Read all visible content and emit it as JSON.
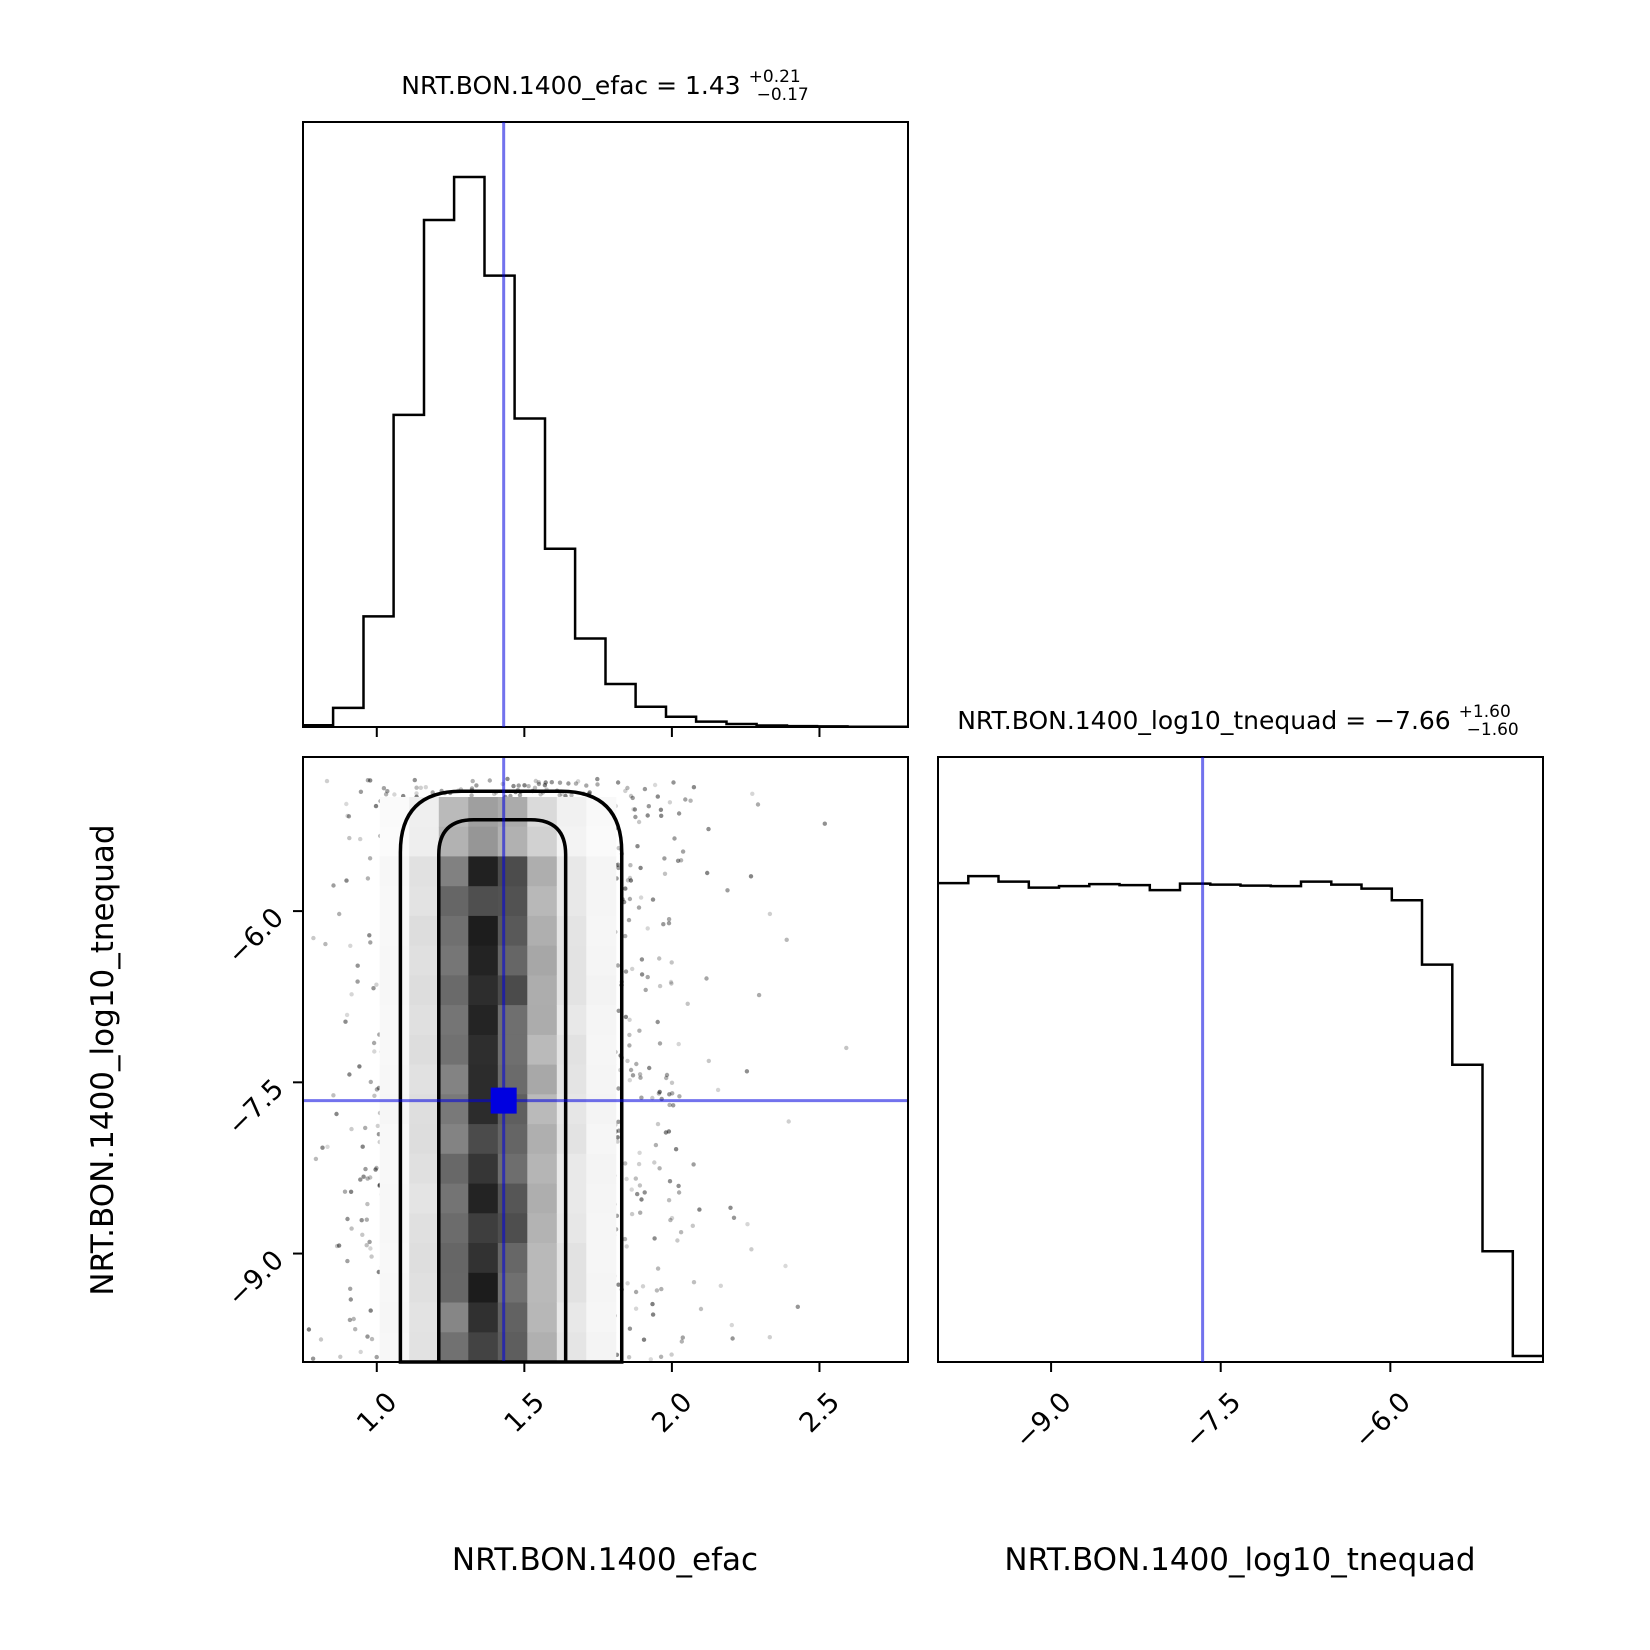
{
  "figure": {
    "truth_color": "#0000e0",
    "line_color": "#000000"
  },
  "chart_data": [
    {
      "id": "hist_efac",
      "type": "histogram",
      "title": {
        "text": "NRT.BON.1400_efac = 1.43",
        "sup": "+0.21",
        "sub": "−0.17"
      },
      "xlim": [
        0.75,
        2.8
      ],
      "x_ticks_shared_with": "joint",
      "bin_edges": [
        0.75,
        0.852,
        0.955,
        1.057,
        1.16,
        1.262,
        1.365,
        1.467,
        1.57,
        1.672,
        1.775,
        1.877,
        1.98,
        2.082,
        2.185,
        2.287,
        2.39,
        2.492,
        2.595,
        2.697,
        2.8
      ],
      "counts": [
        0.3,
        3.2,
        18.5,
        52.2,
        84.8,
        92.0,
        75.5,
        51.6,
        29.8,
        14.8,
        7.2,
        3.4,
        1.7,
        0.9,
        0.5,
        0.25,
        0.15,
        0.1,
        0.05,
        0.03
      ],
      "truth_x": 1.43
    },
    {
      "id": "joint",
      "type": "heatmap",
      "x_values_from": "efac",
      "y_values_from": "log10_tnequad",
      "xlim": [
        0.75,
        2.8
      ],
      "ylim": [
        -9.95,
        -4.65
      ],
      "x_ticks": [
        "1.0",
        "1.5",
        "2.0",
        "2.5"
      ],
      "x_tick_values": [
        1.0,
        1.5,
        2.0,
        2.5
      ],
      "y_ticks": [
        "−6.0",
        "−7.5",
        "−9.0"
      ],
      "y_tick_values": [
        -6.0,
        -7.5,
        -9.0
      ],
      "xlabel": "NRT.BON.1400_efac",
      "ylabel": "NRT.BON.1400_log10_tnequad",
      "density_x_centers": [
        1.06,
        1.16,
        1.26,
        1.36,
        1.46,
        1.56,
        1.66,
        1.76
      ],
      "density_x_column_levels": [
        0.03,
        0.12,
        0.55,
        0.8,
        0.62,
        0.3,
        0.1,
        0.04
      ],
      "contours": [
        {
          "level": "outer",
          "left_x": 1.08,
          "right_x": 1.83,
          "top_y": -4.95
        },
        {
          "level": "inner",
          "left_x": 1.21,
          "right_x": 1.64,
          "top_y": -5.2
        }
      ],
      "truth_x": 1.43,
      "truth_y": -7.66
    },
    {
      "id": "hist_tnequad",
      "type": "histogram",
      "title": {
        "text": "NRT.BON.1400_log10_tnequad = −7.66",
        "sup": "+1.60",
        "sub": "−1.60"
      },
      "xlim": [
        -10.0,
        -4.65
      ],
      "x_ticks": [
        "−9.0",
        "−7.5",
        "−6.0"
      ],
      "x_tick_values": [
        -9.0,
        -7.5,
        -6.0
      ],
      "xlabel": "NRT.BON.1400_log10_tnequad",
      "bin_edges": [
        -10.0,
        -9.7325,
        -9.465,
        -9.1975,
        -8.93,
        -8.6625,
        -8.395,
        -8.1275,
        -7.86,
        -7.5925,
        -7.325,
        -7.0575,
        -6.79,
        -6.5225,
        -6.255,
        -5.9875,
        -5.72,
        -5.4525,
        -5.185,
        -4.9175,
        -4.65
      ],
      "counts": [
        95.2,
        96.6,
        95.5,
        94.3,
        94.6,
        95.0,
        94.8,
        93.8,
        95.1,
        94.9,
        94.7,
        94.6,
        95.5,
        94.9,
        94.1,
        91.8,
        79.0,
        59.1,
        22.0,
        1.2
      ],
      "truth_x": -7.66
    }
  ]
}
